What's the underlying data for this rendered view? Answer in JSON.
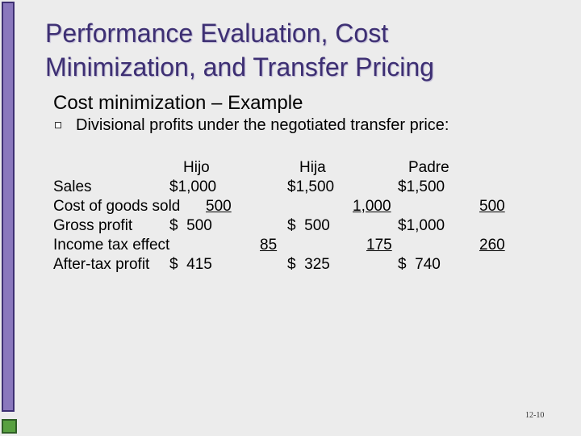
{
  "title": {
    "line1": "Performance Evaluation, Cost",
    "line2": "Minimization, and Transfer Pricing"
  },
  "subtitle": "Cost minimization – Example",
  "bullet": "Divisional profits under the negotiated transfer price:",
  "table": {
    "headers": {
      "hijo": "Hijo",
      "hija": "Hija",
      "padre": "Padre"
    },
    "rows": {
      "sales": {
        "label": "Sales",
        "hijo": "$1,000",
        "hija": "$1,500",
        "padre": "$1,500"
      },
      "cogs": {
        "label": "Cost of goods sold",
        "hijo": "500",
        "hija": "1,000",
        "padre": "500"
      },
      "gross": {
        "label": "Gross profit",
        "hijo": "$  500",
        "hija": "$  500",
        "padre": "$1,000"
      },
      "tax": {
        "label": "Income tax effect",
        "hijo": "85",
        "hija": "175",
        "padre": "260"
      },
      "after": {
        "label": "After-tax profit",
        "hijo": "$  415",
        "hija": "$  325",
        "padre": "$  740"
      }
    }
  },
  "slide_number": "12-10",
  "colors": {
    "title": "#3d2f73",
    "accent_bar": "#8a78bd",
    "corner_square": "#58a040",
    "background": "#ececec"
  }
}
